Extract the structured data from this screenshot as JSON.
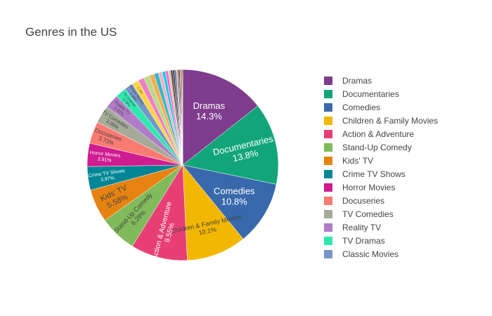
{
  "chart_data": {
    "type": "pie",
    "title": "Genres in the US",
    "legend_position": "right",
    "slices": [
      {
        "label": "Dramas",
        "value": 14.3,
        "text": "14.3%",
        "color": "#7f3c8d"
      },
      {
        "label": "Documentaries",
        "value": 13.8,
        "text": "13.8%",
        "color": "#11a579"
      },
      {
        "label": "Comedies",
        "value": 10.8,
        "text": "10.8%",
        "color": "#3969ac"
      },
      {
        "label": "Children & Family Movies",
        "value": 10.1,
        "text": "10.1%",
        "color": "#f2b701"
      },
      {
        "label": "Action & Adventure",
        "value": 9.55,
        "text": "9.55%",
        "color": "#e73f74"
      },
      {
        "label": "Stand-Up Comedy",
        "value": 6.28,
        "text": "6.28%",
        "color": "#80ba5a"
      },
      {
        "label": "Kids' TV",
        "value": 5.58,
        "text": "5.58%",
        "color": "#e68310"
      },
      {
        "label": "Crime TV Shows",
        "value": 3.97,
        "text": "3.97%",
        "color": "#008695"
      },
      {
        "label": "Horror Movies",
        "value": 3.91,
        "text": "3.91%",
        "color": "#cf1c90"
      },
      {
        "label": "Docuseries",
        "value": 3.73,
        "text": "3.73%",
        "color": "#f97b72"
      },
      {
        "label": "TV Comedies",
        "value": 3.0,
        "text": "3.00%",
        "color": "#a5aa99"
      },
      {
        "label": "Reality TV",
        "value": 2.42,
        "text": "2.42%",
        "color": "#b07cc6"
      },
      {
        "label": "TV Dramas",
        "value": 1.79,
        "text": "1.79%",
        "color": "#2ee8b0"
      },
      {
        "label": "Classic Movies",
        "value": 1.48,
        "text": "1.48%",
        "color": "#7596c8"
      },
      {
        "label": "",
        "value": 1.15,
        "text": "1.15%",
        "color": "#fed44a"
      },
      {
        "label": "",
        "value": 1.0,
        "text": "",
        "color": "#ee7fc2"
      },
      {
        "label": "",
        "value": 0.95,
        "text": "",
        "color": "#b9d98a"
      },
      {
        "label": "",
        "value": 0.85,
        "text": "",
        "color": "#f3ad58"
      },
      {
        "label": "",
        "value": 0.75,
        "text": "",
        "color": "#37b7c6"
      },
      {
        "label": "",
        "value": 0.65,
        "text": "",
        "color": "#f0b2c4"
      },
      {
        "label": "",
        "value": 0.55,
        "text": "",
        "color": "#1fc7f0"
      },
      {
        "label": "",
        "value": 0.45,
        "text": "",
        "color": "#ff6fb3"
      },
      {
        "label": "",
        "value": 0.4,
        "text": "",
        "color": "#c8c8c8"
      },
      {
        "label": "",
        "value": 0.35,
        "text": "",
        "color": "#6f3c2e"
      },
      {
        "label": "",
        "value": 0.3,
        "text": "",
        "color": "#3a3a3a"
      },
      {
        "label": "",
        "value": 0.28,
        "text": "",
        "color": "#2c6db2"
      },
      {
        "label": "",
        "value": 0.25,
        "text": "",
        "color": "#e8a0a0"
      },
      {
        "label": "",
        "value": 0.22,
        "text": "",
        "color": "#92400e"
      },
      {
        "label": "",
        "value": 0.2,
        "text": "",
        "color": "#1a4f7a"
      },
      {
        "label": "",
        "value": 0.18,
        "text": "",
        "color": "#d15a15"
      },
      {
        "label": "",
        "value": 0.15,
        "text": "",
        "color": "#4d4d4d"
      },
      {
        "label": "",
        "value": 0.12,
        "text": "",
        "color": "#7a6a2a"
      }
    ]
  }
}
